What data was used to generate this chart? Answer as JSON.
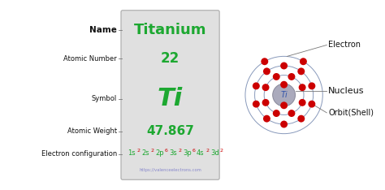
{
  "bg_color": "#ffffff",
  "title": "Titanium",
  "atomic_number": "22",
  "symbol": "Ti",
  "atomic_weight": "47.867",
  "website": "https://valenceelectrons.com",
  "left_labels": [
    "Name",
    "Atomic Number",
    "Symbol",
    "Atomic Weight",
    "Electron configuration"
  ],
  "green_color": "#1da831",
  "red_color": "#cc0000",
  "box_bg": "#e0e0e0",
  "nucleus_color": "#aaaabc",
  "orbit_color": "#8899bb",
  "label_color": "#111111",
  "config_parts": [
    [
      "1s",
      false
    ],
    [
      "2",
      true
    ],
    [
      "2s",
      false
    ],
    [
      "2",
      true
    ],
    [
      "2p",
      false
    ],
    [
      "6",
      true
    ],
    [
      "3s",
      false
    ],
    [
      "2",
      true
    ],
    [
      "3p",
      false
    ],
    [
      "6",
      true
    ],
    [
      "4s",
      false
    ],
    [
      "2",
      true
    ],
    [
      "3d",
      false
    ],
    [
      "2",
      true
    ]
  ],
  "orbit_radii": [
    0.055,
    0.105,
    0.155,
    0.205
  ],
  "electron_shells": [
    [
      90,
      270
    ],
    [
      22.5,
      67.5,
      112.5,
      157.5,
      202.5,
      247.5,
      292.5,
      337.5
    ],
    [
      18,
      54,
      90,
      126,
      162,
      198,
      234,
      270,
      306,
      342
    ],
    [
      60,
      120
    ]
  ]
}
